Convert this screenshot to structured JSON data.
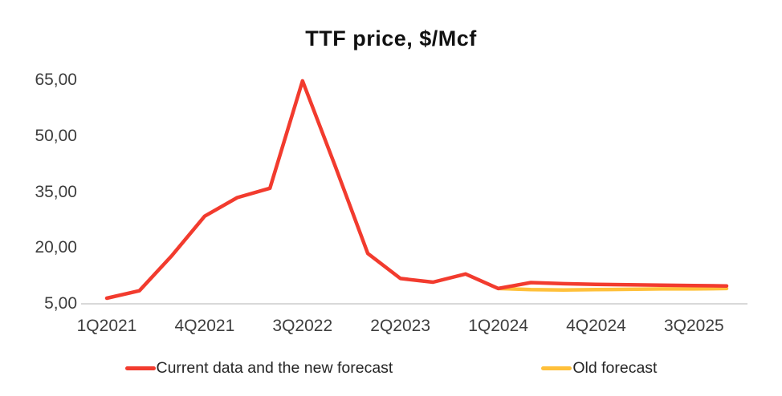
{
  "chart_data": {
    "type": "line",
    "title": "TTF price, $/Mcf",
    "xlabel": "",
    "ylabel": "",
    "ylim": [
      5,
      65
    ],
    "grid": false,
    "legend_position": "bottom",
    "decimal_separator": ",",
    "y_ticks": [
      65,
      50,
      35,
      20,
      5
    ],
    "y_tick_labels": [
      "65,00",
      "50,00",
      "35,00",
      "20,00",
      "5,00"
    ],
    "x_tick_labels": [
      "1Q2021",
      "4Q2021",
      "3Q2022",
      "2Q2023",
      "1Q2024",
      "4Q2024",
      "3Q2025"
    ],
    "categories": [
      "1Q2021",
      "2Q2021",
      "3Q2021",
      "4Q2021",
      "1Q2022",
      "2Q2022",
      "3Q2022",
      "4Q2022",
      "1Q2023",
      "2Q2023",
      "3Q2023",
      "4Q2023",
      "1Q2024",
      "2Q2024",
      "3Q2024",
      "4Q2024",
      "1Q2025",
      "2Q2025",
      "3Q2025",
      "4Q2025"
    ],
    "series": [
      {
        "name": "Current data and the new forecast",
        "color": "#F23B2E",
        "values": [
          6.5,
          8.5,
          18,
          28.5,
          33.5,
          36,
          64.8,
          42,
          18.5,
          11.8,
          10.8,
          13,
          9.1,
          10.7,
          10.4,
          10.2,
          10.1,
          10,
          9.9,
          9.8
        ]
      },
      {
        "name": "Old forecast",
        "color": "#FFC03A",
        "values": [
          null,
          null,
          null,
          null,
          null,
          null,
          null,
          null,
          null,
          null,
          null,
          null,
          9.1,
          8.8,
          8.7,
          8.8,
          8.9,
          9,
          9,
          9.1
        ]
      }
    ],
    "colors": {
      "axis_line": "#D9D9D9",
      "tick_text": "#3d3d3d",
      "title_text": "#111111"
    }
  }
}
